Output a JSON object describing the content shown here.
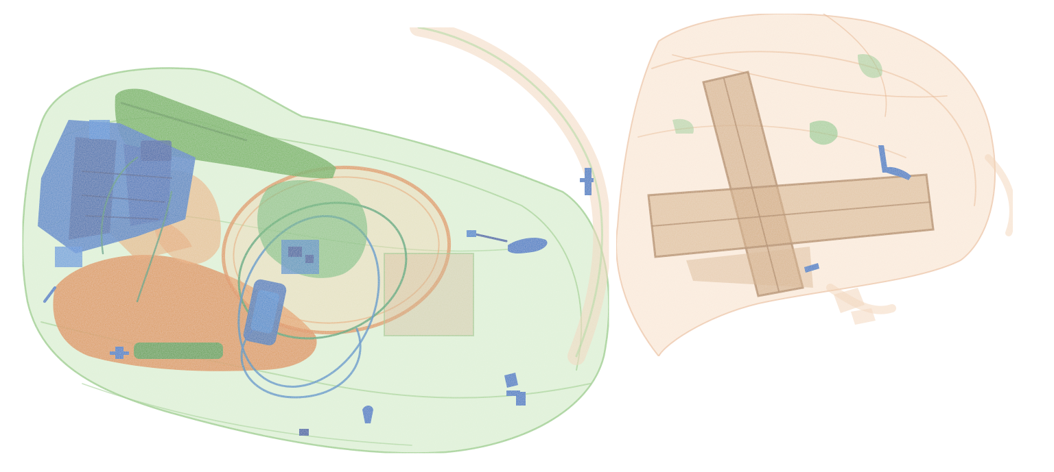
{
  "image": {
    "kind": "x-ray-baggage-scan",
    "background": "#ffffff",
    "palette": {
      "organic": "#d9822b",
      "organic_light": "#f2c9a0",
      "mixed": "#4caf50",
      "mixed_light": "#a8d89a",
      "inorganic": "#1f6fc0",
      "inorganic_dark": "#0d4f9e"
    },
    "objects": [
      "backpack",
      "handbag",
      "laptop-battery-pack",
      "cable-coil",
      "circuit-board",
      "cylindrical-battery",
      "zipper-pulls",
      "cross-shaped-frame"
    ]
  }
}
